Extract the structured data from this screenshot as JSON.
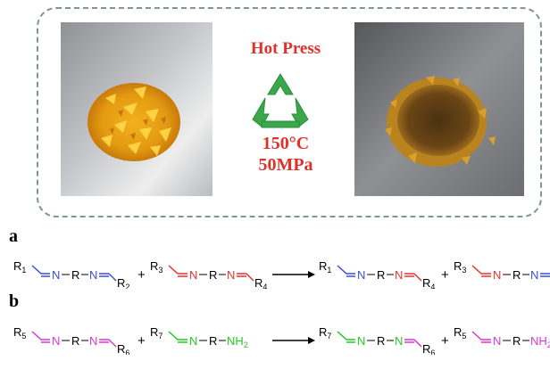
{
  "process": {
    "title": "Hot Press",
    "temperature": "150°C",
    "pressure": "50MPa"
  },
  "icons": {
    "process_icon": "recycle-icon",
    "arrow": "right-arrow-icon"
  },
  "colors": {
    "caption": "#e0302a",
    "recycle_green": "#3aa84a",
    "frame": "#7f9694",
    "blue_bond": "#3a4fd8",
    "red_bond": "#e8322c",
    "magenta_bond": "#d936d9",
    "green_bond": "#22cc22"
  },
  "photos": {
    "before": "yellow-resin-fragments-photo",
    "after": "hot-pressed-dark-film-photo"
  },
  "panels": {
    "a": {
      "label": "a"
    },
    "b": {
      "label": "b"
    }
  },
  "labels": {
    "R1": "R",
    "s1": "1",
    "R2": "R",
    "s2": "2",
    "R3": "R",
    "s3": "3",
    "R4": "R",
    "s4": "4",
    "R5": "R",
    "s5": "5",
    "R6": "R",
    "s6": "6",
    "R7": "R",
    "s7": "7",
    "N": "N",
    "R": "R",
    "NH": "NH",
    "nh_sub": "2",
    "plus": "+"
  }
}
